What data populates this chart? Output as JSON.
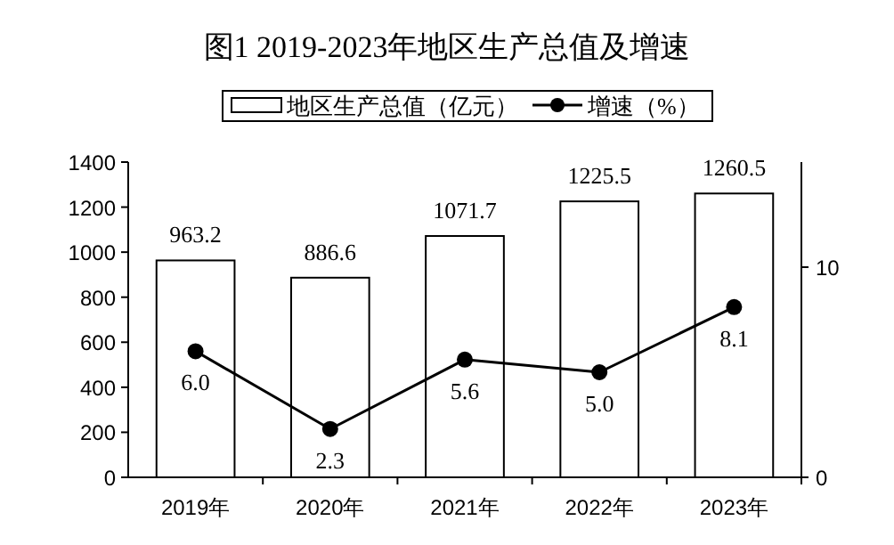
{
  "chart_data": {
    "type": "bar",
    "title": "图1  2019-2023年地区生产总值及增速",
    "categories": [
      "2019年",
      "2020年",
      "2021年",
      "2022年",
      "2023年"
    ],
    "series": [
      {
        "name": "地区生产总值（亿元）",
        "color": "#ffffff",
        "values": [
          963.2,
          886.6,
          1071.7,
          1225.5,
          1260.5
        ]
      },
      {
        "name": "增速（%）",
        "type": "line",
        "axis": "y2",
        "color": "#000000",
        "marker": "circle",
        "values": [
          6.0,
          2.3,
          5.6,
          5.0,
          8.1
        ],
        "value_labels": [
          "6.0",
          "2.3",
          "5.6",
          "5.0",
          "8.1"
        ]
      }
    ],
    "ylim": [
      0,
      1400
    ],
    "yticks": [
      0,
      200,
      400,
      600,
      800,
      1000,
      1200,
      1400
    ],
    "y2lim": [
      0,
      15
    ],
    "y2ticks": [
      0,
      10
    ],
    "data_labels": true,
    "legend": "top",
    "grid": false
  }
}
